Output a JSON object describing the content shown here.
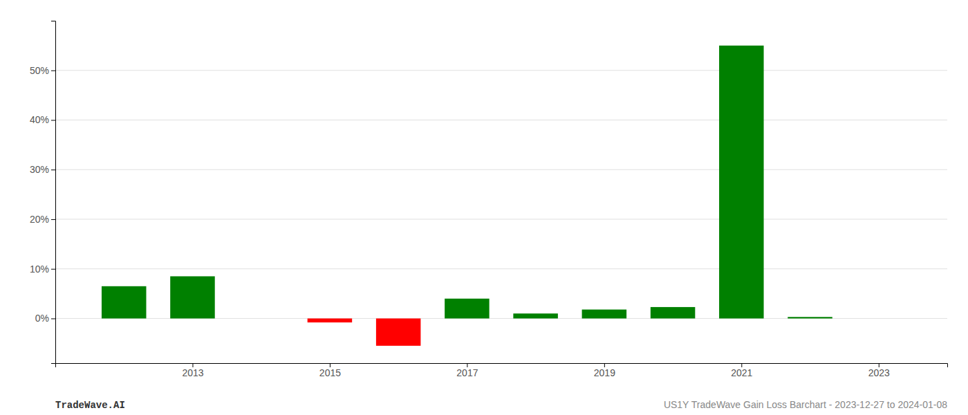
{
  "chart_data": {
    "type": "bar",
    "x": [
      2012,
      2013,
      2015,
      2016,
      2017,
      2018,
      2019,
      2020,
      2021,
      2022
    ],
    "values": [
      6.5,
      8.5,
      -0.8,
      -5.5,
      4.0,
      1.0,
      1.8,
      2.3,
      55.0,
      0.3
    ],
    "colors": [
      "#008000",
      "#008000",
      "#ff0000",
      "#ff0000",
      "#008000",
      "#008000",
      "#008000",
      "#008000",
      "#008000",
      "#008000"
    ],
    "xlim": [
      2011,
      2024
    ],
    "xticks": [
      2013,
      2015,
      2017,
      2019,
      2021,
      2023
    ],
    "ylim": [
      -9,
      60
    ],
    "yticks": [
      {
        "value": 0,
        "label": "0%"
      },
      {
        "value": 10,
        "label": "10%"
      },
      {
        "value": 20,
        "label": "20%"
      },
      {
        "value": 30,
        "label": "30%"
      },
      {
        "value": 40,
        "label": "40%"
      },
      {
        "value": 50,
        "label": "50%"
      }
    ],
    "grid": true,
    "annotations": [
      "TradeWave.AI",
      "US1Y TradeWave Gain Loss Barchart - 2023-12-27 to 2024-01-08"
    ]
  }
}
